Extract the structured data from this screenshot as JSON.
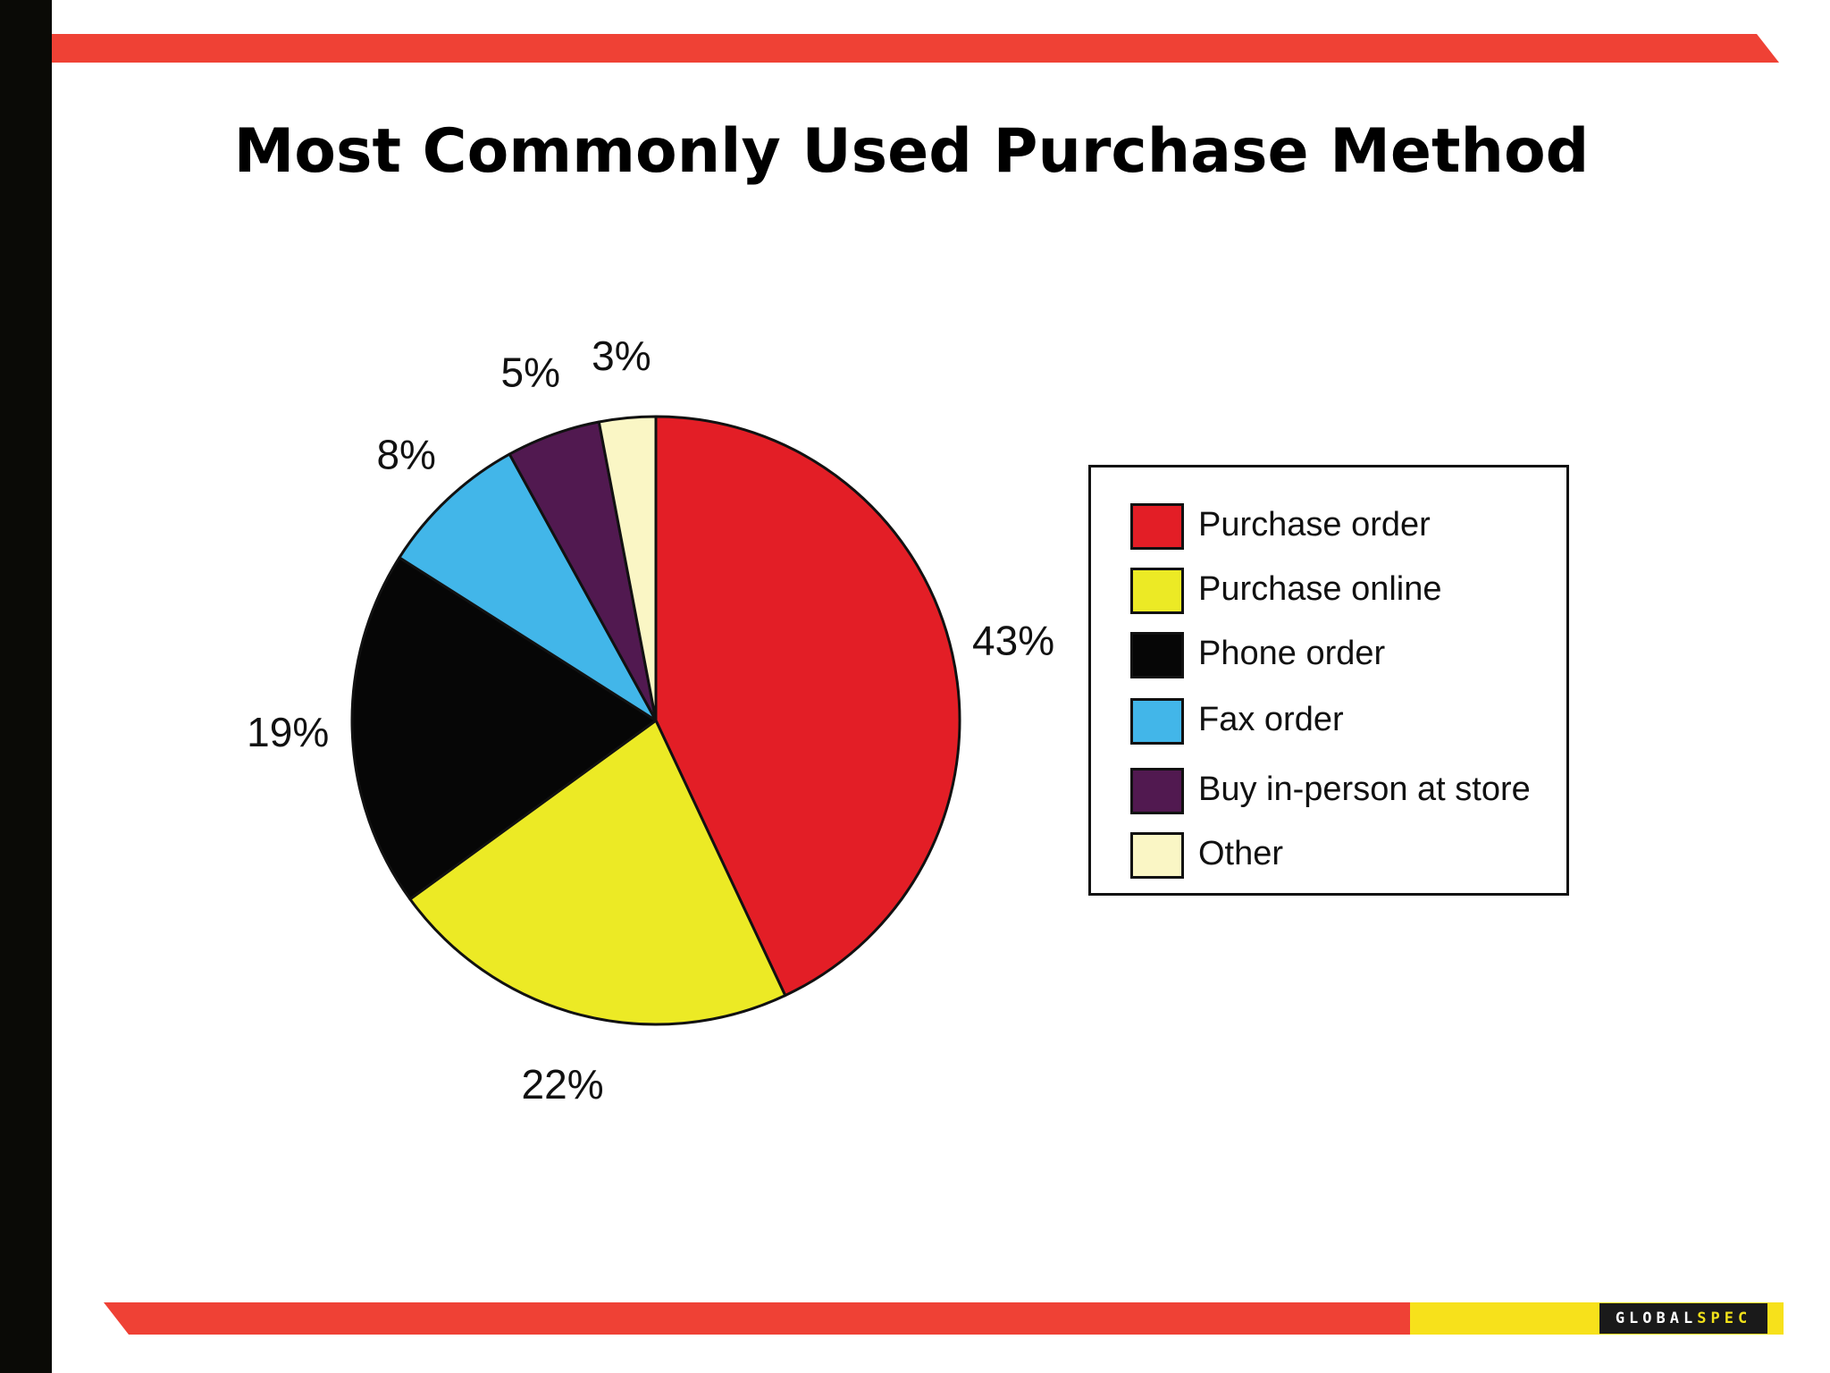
{
  "slide": {
    "title": "Most Commonly Used Purchase Method",
    "logo_left": "GLOBAL",
    "logo_right": "SPEC"
  },
  "colors": {
    "stripe_red": "#ef4135",
    "stripe_yellow": "#f7e11b",
    "left_bar": "#0a0a06"
  },
  "chart_data": {
    "type": "pie",
    "title": "Most Commonly Used Purchase Method",
    "categories": [
      "Purchase order",
      "Purchase online",
      "Phone order",
      "Fax order",
      "Buy in-person at store",
      "Other"
    ],
    "values": [
      43,
      22,
      19,
      8,
      5,
      3
    ],
    "value_labels": [
      "43%",
      "22%",
      "19%",
      "8%",
      "5%",
      "3%"
    ],
    "colors": [
      "#e31e26",
      "#ecea25",
      "#060606",
      "#42b6e9",
      "#511950",
      "#faf6c5"
    ],
    "start": "12 o'clock",
    "direction": "clockwise",
    "legend_position": "right"
  }
}
